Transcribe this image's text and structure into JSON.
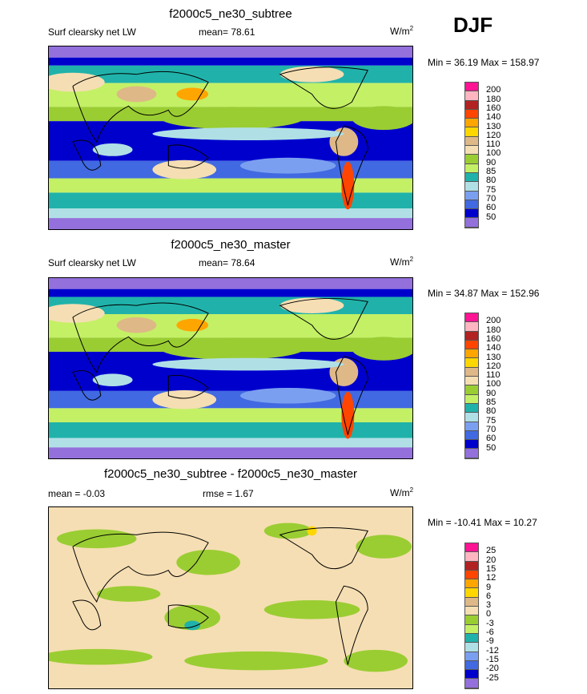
{
  "season": "DJF",
  "colors": [
    "#ff1493",
    "#ffb6c1",
    "#b22222",
    "#ff4500",
    "#ffa500",
    "#ffd700",
    "#deb887",
    "#f5deb3",
    "#9acd32",
    "#c4f066",
    "#20b2aa",
    "#b0e0e6",
    "#7b9ff0",
    "#4169e1",
    "#0000cd",
    "#9370db"
  ],
  "panels": [
    {
      "title": "f2000c5_ne30_subtree",
      "left_label": "Surf clearsky net LW",
      "stat": "mean=  78.61",
      "units": "W/m",
      "units_sup": "2",
      "minmax": "Min =  36.19 Max = 158.97",
      "levels": [
        "200",
        "180",
        "160",
        "140",
        "130",
        "120",
        "110",
        "100",
        "90",
        "85",
        "80",
        "75",
        "70",
        "60",
        "50"
      ]
    },
    {
      "title": "f2000c5_ne30_master",
      "left_label": "Surf clearsky net LW",
      "stat": "mean=  78.64",
      "units": "W/m",
      "units_sup": "2",
      "minmax": "Min =  34.87 Max = 152.96",
      "levels": [
        "200",
        "180",
        "160",
        "140",
        "130",
        "120",
        "110",
        "100",
        "90",
        "85",
        "80",
        "75",
        "70",
        "60",
        "50"
      ]
    },
    {
      "title": "f2000c5_ne30_subtree - f2000c5_ne30_master",
      "left_label": "mean =  -0.03",
      "stat": "rmse =   1.67",
      "units": "W/m",
      "units_sup": "2",
      "minmax": "Min = -10.41 Max =  10.27",
      "levels": [
        "25",
        "20",
        "15",
        "12",
        "9",
        "6",
        "3",
        "0",
        "-3",
        "-6",
        "-9",
        "-12",
        "-15",
        "-20",
        "-25"
      ]
    }
  ]
}
